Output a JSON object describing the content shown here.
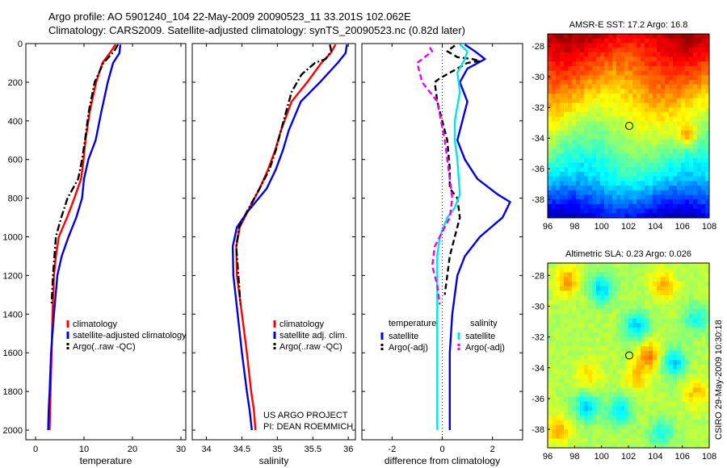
{
  "header": {
    "title_line1": "Argo profile: AO 5901240_104 22-May-2009 20090523_11 33.201S 102.062E",
    "title_line2": "Climatology: CARS2009. Satellite-adjusted climatology: synTS_20090523.nc (0.82d later)"
  },
  "credits": {
    "project": "US ARGO PROJECT",
    "pi": "PI: DEAN ROEMMICH",
    "side": "CSIRO 29-May-2009 10:30:18"
  },
  "colors": {
    "climatology": "#ff0000",
    "satellite": "#0000dd",
    "argo": "#000000",
    "temp_diff_satellite": "#0000dd",
    "salinity_diff_satellite": "#00e5e5",
    "salinity_diff_argo": "#ee00ee",
    "float_marker": "#000000"
  },
  "chart_data": [
    {
      "type": "line",
      "name": "temperature-profile",
      "xlabel": "temperature",
      "ylabel": "",
      "xlim": [
        -2,
        31
      ],
      "ylim": [
        2050,
        0
      ],
      "xticks": [
        "0",
        "10",
        "20",
        "30"
      ],
      "xtick_values": [
        0,
        10,
        20,
        30
      ],
      "yticks": [
        "0",
        "200",
        "400",
        "600",
        "800",
        "1000",
        "1200",
        "1400",
        "1600",
        "1800",
        "2000"
      ],
      "ytick_values": [
        0,
        200,
        400,
        600,
        800,
        1000,
        1200,
        1400,
        1600,
        1800,
        2000
      ],
      "legend": [
        "climatology",
        "satellite-adjusted climatology",
        "Argo(..raw -QC)"
      ],
      "legend_position": "lower-right",
      "series": [
        {
          "name": "climatology",
          "style": "solid",
          "color": "#ff0000",
          "x": [
            16.5,
            15.3,
            13.8,
            12.5,
            11.2,
            10.3,
            9.9,
            9.4,
            8.0,
            6.5,
            4.8,
            4.2,
            3.8,
            3.5,
            3.3,
            3.1,
            3.0,
            2.9
          ],
          "y": [
            5,
            50,
            100,
            200,
            350,
            500,
            600,
            700,
            800,
            900,
            1000,
            1100,
            1200,
            1400,
            1600,
            1800,
            1900,
            2000
          ]
        },
        {
          "name": "satellite-adjusted climatology",
          "style": "solid",
          "color": "#0000dd",
          "x": [
            17.5,
            17.3,
            16.0,
            14.9,
            13.6,
            12.4,
            10.9,
            10.0,
            9.6,
            8.4,
            6.8,
            5.4,
            4.5,
            3.8,
            3.2,
            2.9,
            2.7,
            2.6
          ],
          "y": [
            5,
            50,
            100,
            200,
            350,
            500,
            600,
            700,
            800,
            900,
            1000,
            1100,
            1200,
            1400,
            1600,
            1800,
            1900,
            2000
          ]
        },
        {
          "name": "Argo(..raw -QC)",
          "style": "dashdot",
          "color": "#000000",
          "x": [
            17.0,
            16.2,
            14.0,
            12.2,
            11.0,
            10.2,
            9.6,
            8.8,
            6.6,
            5.3,
            4.2,
            3.9,
            3.6,
            3.3
          ],
          "y": [
            5,
            40,
            100,
            200,
            350,
            500,
            600,
            700,
            800,
            900,
            1000,
            1100,
            1200,
            1350
          ]
        }
      ]
    },
    {
      "type": "line",
      "name": "salinity-profile",
      "xlabel": "salinity",
      "ylabel": "",
      "xlim": [
        33.8,
        36.1
      ],
      "ylim": [
        2050,
        0
      ],
      "xticks": [
        "34",
        "34.5",
        "35",
        "35.5",
        "36"
      ],
      "xtick_values": [
        34,
        34.5,
        35,
        35.5,
        36
      ],
      "legend": [
        "climatology",
        "satellite adj. clim.",
        "Argo(..raw -QC)"
      ],
      "legend_position": "lower-right",
      "series": [
        {
          "name": "climatology",
          "style": "solid",
          "color": "#ff0000",
          "x": [
            35.82,
            35.75,
            35.62,
            35.42,
            35.2,
            35.05,
            34.97,
            34.87,
            34.75,
            34.58,
            34.47,
            34.42,
            34.43,
            34.5,
            34.57,
            34.63,
            34.67,
            34.69
          ],
          "y": [
            5,
            50,
            100,
            200,
            300,
            450,
            550,
            650,
            750,
            870,
            950,
            1050,
            1200,
            1400,
            1600,
            1800,
            1900,
            2000
          ]
        },
        {
          "name": "satellite adj. clim.",
          "style": "solid",
          "color": "#0000dd",
          "x": [
            35.98,
            35.96,
            35.85,
            35.6,
            35.33,
            35.16,
            35.08,
            34.98,
            34.85,
            34.58,
            34.43,
            34.37,
            34.38,
            34.44,
            34.5,
            34.57,
            34.61,
            34.64
          ],
          "y": [
            5,
            50,
            100,
            200,
            300,
            450,
            550,
            650,
            750,
            870,
            950,
            1050,
            1200,
            1400,
            1600,
            1800,
            1900,
            2000
          ]
        },
        {
          "name": "Argo(..raw -QC)",
          "style": "dashdot",
          "color": "#000000",
          "x": [
            35.74,
            35.76,
            35.68,
            35.53,
            35.34,
            35.2,
            35.05,
            34.98,
            34.89,
            34.75,
            34.57,
            34.46,
            34.42,
            34.45,
            34.48
          ],
          "y": [
            5,
            40,
            80,
            100,
            160,
            250,
            450,
            550,
            650,
            750,
            870,
            950,
            1050,
            1200,
            1350
          ]
        }
      ]
    },
    {
      "type": "line",
      "name": "difference-from-climatology",
      "xlabel": "difference from climatology",
      "ylabel": "",
      "xlim": [
        -3.2,
        3.2
      ],
      "ylim": [
        2050,
        0
      ],
      "xticks": [
        "-2",
        "0",
        "2"
      ],
      "xtick_values": [
        -2,
        0,
        2
      ],
      "legend_groups": [
        {
          "heading": "temperature",
          "entries": [
            "satellite",
            "Argo(-adj)"
          ]
        },
        {
          "heading": "salinity",
          "entries": [
            "satellite",
            "Argo(-adj)"
          ]
        }
      ],
      "legend_position": "lower-center",
      "series": [
        {
          "name": "temperature satellite",
          "style": "solid",
          "color": "#0000dd",
          "x": [
            0.9,
            1.3,
            1.7,
            1.0,
            0.7,
            1.0,
            0.8,
            0.6,
            0.9,
            1.4,
            2.2,
            2.7,
            2.4,
            1.5,
            0.9,
            0.6,
            0.4,
            0.3,
            0.3,
            0.3,
            0.3
          ],
          "y": [
            5,
            40,
            80,
            130,
            200,
            300,
            400,
            500,
            600,
            700,
            780,
            820,
            900,
            1000,
            1100,
            1200,
            1400,
            1600,
            1800,
            1900,
            2000
          ]
        },
        {
          "name": "temperature Argo(-adj)",
          "style": "dashed",
          "color": "#000000",
          "x": [
            0.5,
            0.2,
            0.6,
            1.2,
            1.5,
            1.0,
            -0.1,
            -0.3,
            -0.2,
            0.2,
            0.3,
            0.3,
            0.6,
            0.7,
            0.5,
            0.3,
            0.2,
            0.1
          ],
          "y": [
            10,
            40,
            70,
            80,
            90,
            100,
            180,
            200,
            300,
            500,
            650,
            750,
            800,
            900,
            1000,
            1100,
            1200,
            1300
          ]
        },
        {
          "name": "salinity satellite",
          "style": "solid",
          "color": "#00e5e5",
          "x": [
            0.7,
            1.0,
            0.9,
            0.6,
            0.7,
            0.5,
            0.5,
            0.6,
            0.7,
            0.5,
            0.2,
            -0.1,
            -0.2,
            -0.2,
            -0.2,
            -0.2,
            -0.2,
            -0.2
          ],
          "y": [
            5,
            40,
            80,
            150,
            250,
            400,
            500,
            600,
            780,
            850,
            900,
            1000,
            1100,
            1200,
            1400,
            1600,
            1800,
            2000
          ]
        },
        {
          "name": "salinity Argo(-adj)",
          "style": "dashed",
          "color": "#ee00ee",
          "x": [
            -0.5,
            -0.4,
            -0.6,
            -1.0,
            -0.8,
            -0.2,
            0.1,
            0.2,
            0.3,
            0.4,
            0.3,
            -0.3,
            -0.4,
            -0.2,
            -0.1
          ],
          "y": [
            20,
            40,
            60,
            100,
            200,
            300,
            500,
            600,
            700,
            800,
            900,
            1050,
            1150,
            1250,
            1350
          ]
        }
      ]
    },
    {
      "type": "heatmap",
      "name": "amsr-e-sst-map",
      "title": "AMSR-E SST: 17.2 Argo: 16.8",
      "xlim": [
        96,
        108
      ],
      "ylim": [
        -39.2,
        -27.2
      ],
      "xticks": [
        "96",
        "98",
        "100",
        "102",
        "104",
        "106",
        "108"
      ],
      "xtick_values": [
        96,
        98,
        100,
        102,
        104,
        106,
        108
      ],
      "yticks": [
        "-28",
        "-30",
        "-32",
        "-34",
        "-36",
        "-38"
      ],
      "ytick_values": [
        -28,
        -30,
        -32,
        -34,
        -36,
        -38
      ],
      "float_position": {
        "lon": 102.06,
        "lat": -33.2
      },
      "colormap": "jet"
    },
    {
      "type": "heatmap",
      "name": "altimetric-sla-map",
      "title": "Altimetric SLA: 0.23 Argo: 0.026",
      "xlim": [
        96,
        108
      ],
      "ylim": [
        -39.2,
        -27.2
      ],
      "xticks": [
        "96",
        "98",
        "100",
        "102",
        "104",
        "106",
        "108"
      ],
      "xtick_values": [
        96,
        98,
        100,
        102,
        104,
        106,
        108
      ],
      "yticks": [
        "-28",
        "-30",
        "-32",
        "-34",
        "-36",
        "-38"
      ],
      "ytick_values": [
        -28,
        -30,
        -32,
        -34,
        -36,
        -38
      ],
      "float_position": {
        "lon": 102.06,
        "lat": -33.2
      },
      "colormap": "jet"
    }
  ]
}
